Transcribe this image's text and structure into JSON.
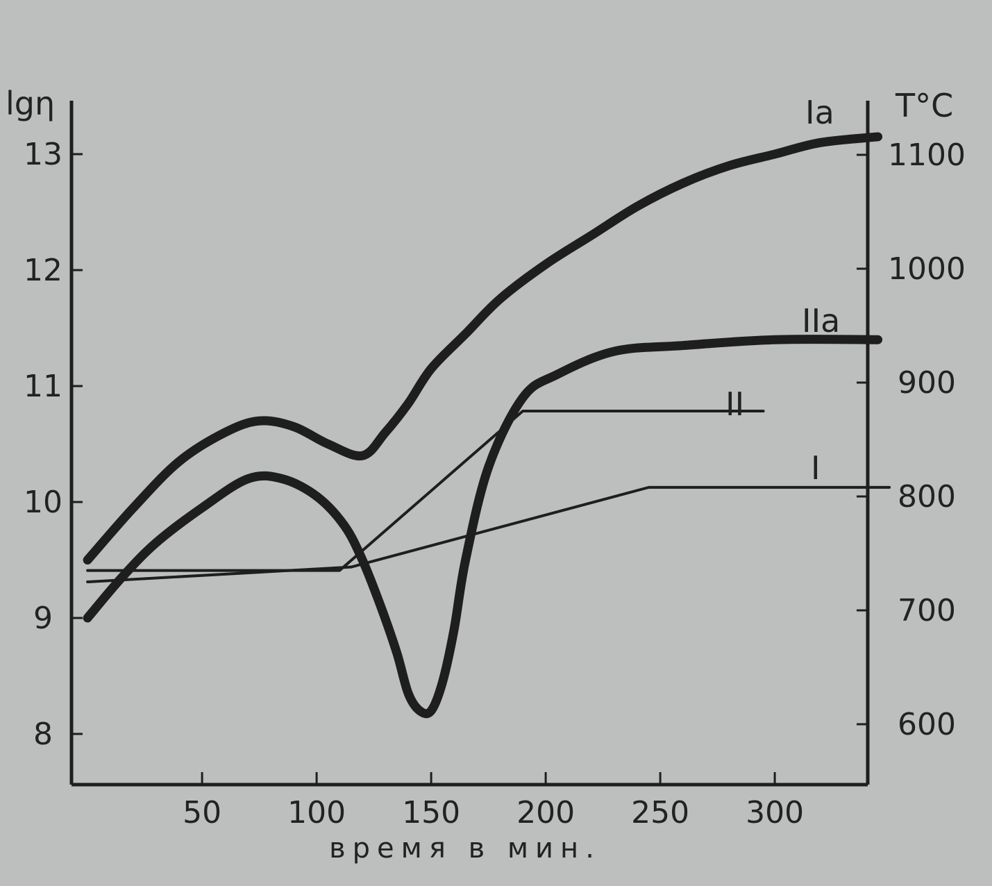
{
  "chart_data": {
    "type": "line",
    "xlabel": "время в мин.",
    "ylabel_left": "lgη",
    "ylabel_right": "T°C",
    "x_ticks": [
      50,
      100,
      150,
      200,
      250,
      300
    ],
    "y_left_ticks": [
      8,
      9,
      10,
      11,
      12,
      13
    ],
    "y_right_ticks": [
      600,
      700,
      800,
      900,
      1000,
      1100
    ],
    "xlim": [
      0,
      350
    ],
    "ylim_left": [
      7.6,
      14.2
    ],
    "ylim_right": [
      550,
      1170
    ],
    "grid": false,
    "background": "#bdbfbe",
    "line_color": "#1e1e1e",
    "series": [
      {
        "name": "Ia",
        "axis": "left",
        "style": "thick",
        "x": [
          0,
          20,
          40,
          60,
          75,
          90,
          105,
          120,
          130,
          140,
          150,
          165,
          180,
          200,
          220,
          240,
          260,
          280,
          300,
          320,
          345
        ],
        "y": [
          9.5,
          9.95,
          10.35,
          10.6,
          10.7,
          10.65,
          10.5,
          10.4,
          10.6,
          10.85,
          11.15,
          11.45,
          11.75,
          12.05,
          12.3,
          12.55,
          12.75,
          12.9,
          13.0,
          13.1,
          13.15
        ]
      },
      {
        "name": "IIa",
        "axis": "left",
        "style": "thick",
        "x": [
          0,
          15,
          30,
          50,
          70,
          85,
          100,
          112,
          120,
          128,
          135,
          140,
          145,
          150,
          155,
          160,
          165,
          175,
          190,
          205,
          230,
          260,
          300,
          345
        ],
        "y": [
          9.0,
          9.35,
          9.65,
          9.95,
          10.2,
          10.2,
          10.05,
          9.8,
          9.5,
          9.1,
          8.7,
          8.35,
          8.2,
          8.2,
          8.45,
          8.9,
          9.5,
          10.3,
          10.9,
          11.1,
          11.3,
          11.35,
          11.4,
          11.4
        ]
      },
      {
        "name": "II",
        "axis": "right",
        "style": "thin",
        "x": [
          0,
          110,
          190,
          295
        ],
        "y": [
          735,
          735,
          875,
          875
        ]
      },
      {
        "name": "I",
        "axis": "right",
        "style": "thin",
        "x": [
          0,
          115,
          245,
          350
        ],
        "y": [
          725,
          738,
          808,
          808
        ]
      }
    ],
    "series_labels": {
      "Ia": "Ia",
      "IIa": "IIa",
      "II": "II",
      "I": "I"
    }
  }
}
